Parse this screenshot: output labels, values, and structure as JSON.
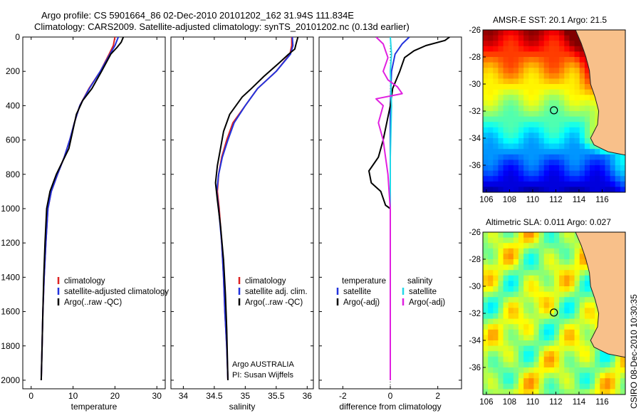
{
  "figure": {
    "title_line1": "Argo profile: CS 5901664_86 02-Dec-2010 20101202_162 31.94S 111.834E",
    "title_line2": "Climatology: CARS2009. Satellite-adjusted climatology: synTS_20101202.nc (0.13d earlier)",
    "side_stamp": "CSIRO 08-Dec-2010 10:30:35",
    "argo_credit_1": "Argo AUSTRALIA",
    "argo_credit_2": "PI: Susan Wijffels"
  },
  "colors": {
    "climatology": "#dd2222",
    "satellite": "#2233dd",
    "argo": "#000000",
    "salinity_satellite": "#22d8e8",
    "salinity_argo": "#e020e0",
    "land": "#f8c08a"
  },
  "chart_data": [
    {
      "type": "line",
      "id": "temperature",
      "xlabel": "temperature",
      "ylabel": "",
      "xlim": [
        -2,
        32
      ],
      "ylim": [
        0,
        2050
      ],
      "y_inverted": true,
      "xticks": [
        0,
        10,
        20,
        30
      ],
      "yticks": [
        0,
        200,
        400,
        600,
        800,
        1000,
        1200,
        1400,
        1600,
        1800,
        2000
      ],
      "legend": [
        "climatology",
        "satellite-adjusted climatology",
        "Argo(..raw -QC)"
      ],
      "legend_placement": "lower-middle",
      "series": [
        {
          "name": "climatology",
          "color_key": "climatology",
          "points": [
            [
              20.0,
              0
            ],
            [
              19.6,
              50
            ],
            [
              18.6,
              100
            ],
            [
              16.5,
              200
            ],
            [
              13.8,
              300
            ],
            [
              11.6,
              400
            ],
            [
              10.3,
              500
            ],
            [
              9.2,
              600
            ],
            [
              7.9,
              700
            ],
            [
              6.3,
              800
            ],
            [
              4.8,
              900
            ],
            [
              4.0,
              1000
            ],
            [
              3.5,
              1200
            ],
            [
              3.1,
              1400
            ],
            [
              2.8,
              1600
            ],
            [
              2.6,
              1800
            ],
            [
              2.4,
              2000
            ]
          ]
        },
        {
          "name": "satellite-adjusted climatology",
          "color_key": "satellite",
          "points": [
            [
              20.8,
              0
            ],
            [
              20.0,
              50
            ],
            [
              18.8,
              100
            ],
            [
              16.5,
              200
            ],
            [
              13.9,
              300
            ],
            [
              11.6,
              400
            ],
            [
              10.3,
              500
            ],
            [
              9.2,
              600
            ],
            [
              7.9,
              700
            ],
            [
              6.3,
              800
            ],
            [
              4.8,
              900
            ],
            [
              4.0,
              1000
            ],
            [
              3.5,
              1200
            ],
            [
              3.1,
              1400
            ],
            [
              2.8,
              1600
            ],
            [
              2.6,
              1800
            ],
            [
              2.4,
              2000
            ]
          ]
        },
        {
          "name": "Argo(..raw -QC)",
          "color_key": "argo",
          "points": [
            [
              22.0,
              0
            ],
            [
              21.5,
              30
            ],
            [
              20.5,
              60
            ],
            [
              19.0,
              100
            ],
            [
              16.8,
              200
            ],
            [
              14.5,
              300
            ],
            [
              12.3,
              370
            ],
            [
              10.8,
              450
            ],
            [
              9.9,
              550
            ],
            [
              9.0,
              650
            ],
            [
              6.0,
              800
            ],
            [
              4.5,
              900
            ],
            [
              3.7,
              1000
            ],
            [
              3.3,
              1200
            ],
            [
              3.0,
              1400
            ],
            [
              2.8,
              1600
            ],
            [
              2.6,
              1800
            ],
            [
              2.4,
              2000
            ]
          ]
        }
      ]
    },
    {
      "type": "line",
      "id": "salinity",
      "xlabel": "salinity",
      "ylabel": "",
      "xlim": [
        33.8,
        36.1
      ],
      "ylim": [
        0,
        2050
      ],
      "y_inverted": true,
      "xticks": [
        34,
        34.5,
        35,
        35.5,
        36
      ],
      "yticks": [
        0,
        200,
        400,
        600,
        800,
        1000,
        1200,
        1400,
        1600,
        1800,
        2000
      ],
      "legend": [
        "climatology",
        "satellite adj. clim.",
        "Argo(..raw -QC)"
      ],
      "legend_placement": "lower-right",
      "series": [
        {
          "name": "climatology",
          "color_key": "climatology",
          "points": [
            [
              35.75,
              0
            ],
            [
              35.75,
              50
            ],
            [
              35.72,
              100
            ],
            [
              35.5,
              200
            ],
            [
              35.2,
              300
            ],
            [
              35.0,
              400
            ],
            [
              34.8,
              500
            ],
            [
              34.7,
              600
            ],
            [
              34.62,
              700
            ],
            [
              34.57,
              800
            ],
            [
              34.55,
              900
            ],
            [
              34.58,
              1000
            ],
            [
              34.62,
              1200
            ],
            [
              34.65,
              1400
            ],
            [
              34.67,
              1600
            ],
            [
              34.7,
              1800
            ],
            [
              34.72,
              2000
            ]
          ]
        },
        {
          "name": "satellite adj. clim.",
          "color_key": "satellite",
          "points": [
            [
              35.76,
              0
            ],
            [
              35.77,
              50
            ],
            [
              35.73,
              100
            ],
            [
              35.5,
              200
            ],
            [
              35.2,
              300
            ],
            [
              35.0,
              400
            ],
            [
              34.82,
              500
            ],
            [
              34.72,
              600
            ],
            [
              34.63,
              700
            ],
            [
              34.57,
              800
            ],
            [
              34.54,
              900
            ],
            [
              34.57,
              1000
            ],
            [
              34.62,
              1200
            ],
            [
              34.65,
              1400
            ],
            [
              34.67,
              1600
            ],
            [
              34.7,
              1800
            ],
            [
              34.72,
              2000
            ]
          ]
        },
        {
          "name": "Argo(..raw -QC)",
          "color_key": "argo",
          "points": [
            [
              35.85,
              0
            ],
            [
              35.82,
              40
            ],
            [
              35.8,
              70
            ],
            [
              35.7,
              100
            ],
            [
              35.55,
              150
            ],
            [
              35.3,
              230
            ],
            [
              35.1,
              300
            ],
            [
              34.95,
              350
            ],
            [
              34.75,
              450
            ],
            [
              34.65,
              550
            ],
            [
              34.6,
              650
            ],
            [
              34.55,
              750
            ],
            [
              34.52,
              850
            ],
            [
              34.55,
              950
            ],
            [
              34.6,
              1100
            ],
            [
              34.65,
              1300
            ],
            [
              34.68,
              1500
            ],
            [
              34.7,
              1700
            ],
            [
              34.72,
              2000
            ]
          ]
        }
      ]
    },
    {
      "type": "line",
      "id": "difference",
      "xlabel": "difference from climatology",
      "ylabel": "",
      "xlim": [
        -3.0,
        3.0
      ],
      "ylim": [
        0,
        2050
      ],
      "y_inverted": true,
      "xticks": [
        -2,
        0,
        2
      ],
      "yticks": [
        0,
        200,
        400,
        600,
        800,
        1000,
        1200,
        1400,
        1600,
        1800,
        2000
      ],
      "legend": [
        "temperature",
        "satellite",
        "Argo(-adj)",
        "salinity",
        "satellite",
        "Argo(-adj)"
      ],
      "legend_placement": "lower-middle",
      "series": [
        {
          "name": "temperature satellite",
          "color_key": "satellite",
          "points": [
            [
              0.8,
              0
            ],
            [
              0.5,
              40
            ],
            [
              0.2,
              100
            ],
            [
              0.05,
              200
            ],
            [
              0.0,
              400
            ],
            [
              0.0,
              1000
            ],
            [
              0.0,
              2000
            ]
          ]
        },
        {
          "name": "temperature Argo(-adj)",
          "color_key": "argo",
          "points": [
            [
              2.5,
              0
            ],
            [
              2.3,
              20
            ],
            [
              1.5,
              50
            ],
            [
              1.0,
              80
            ],
            [
              0.6,
              120
            ],
            [
              0.4,
              200
            ],
            [
              0.1,
              300
            ],
            [
              0.0,
              400
            ],
            [
              -0.3,
              600
            ],
            [
              -0.5,
              700
            ],
            [
              -0.9,
              780
            ],
            [
              -0.8,
              850
            ],
            [
              -0.4,
              900
            ],
            [
              -0.2,
              980
            ],
            [
              0.0,
              1000
            ],
            [
              0.0,
              2000
            ]
          ]
        },
        {
          "name": "salinity satellite",
          "color_key": "salinity_satellite",
          "points": [
            [
              0.0,
              0
            ],
            [
              0.05,
              100
            ],
            [
              0.0,
              200
            ],
            [
              0.05,
              400
            ],
            [
              0.0,
              700
            ],
            [
              0.0,
              2000
            ]
          ]
        },
        {
          "name": "salinity Argo(-adj)",
          "color_key": "salinity_argo",
          "points": [
            [
              -0.6,
              0
            ],
            [
              -0.3,
              40
            ],
            [
              -0.2,
              80
            ],
            [
              -0.1,
              120
            ],
            [
              -0.3,
              200
            ],
            [
              -0.1,
              250
            ],
            [
              0.3,
              290
            ],
            [
              0.5,
              330
            ],
            [
              -0.6,
              360
            ],
            [
              -0.3,
              400
            ],
            [
              -0.5,
              500
            ],
            [
              -0.3,
              600
            ],
            [
              -0.2,
              700
            ],
            [
              -0.1,
              800
            ],
            [
              -0.05,
              900
            ],
            [
              0.0,
              1000
            ],
            [
              0.0,
              2000
            ]
          ]
        }
      ]
    },
    {
      "type": "heatmap",
      "id": "sst_map",
      "title": "AMSR-E SST: 20.1  Argo: 21.5",
      "xlim": [
        105.7,
        118
      ],
      "ylim": [
        -38,
        -26
      ],
      "xticks": [
        106,
        108,
        110,
        112,
        114,
        116
      ],
      "yticks": [
        -26,
        -28,
        -30,
        -32,
        -34,
        -36
      ],
      "marker": {
        "lon": 111.834,
        "lat": -31.94
      }
    },
    {
      "type": "heatmap",
      "id": "sla_map",
      "title": "Altimetric SLA: 0.011  Argo: 0.027",
      "xlim": [
        105.7,
        118
      ],
      "ylim": [
        -38,
        -26
      ],
      "xticks": [
        106,
        108,
        110,
        112,
        114,
        116
      ],
      "yticks": [
        -26,
        -28,
        -30,
        -32,
        -34,
        -36
      ],
      "marker": {
        "lon": 111.834,
        "lat": -31.94
      }
    }
  ]
}
